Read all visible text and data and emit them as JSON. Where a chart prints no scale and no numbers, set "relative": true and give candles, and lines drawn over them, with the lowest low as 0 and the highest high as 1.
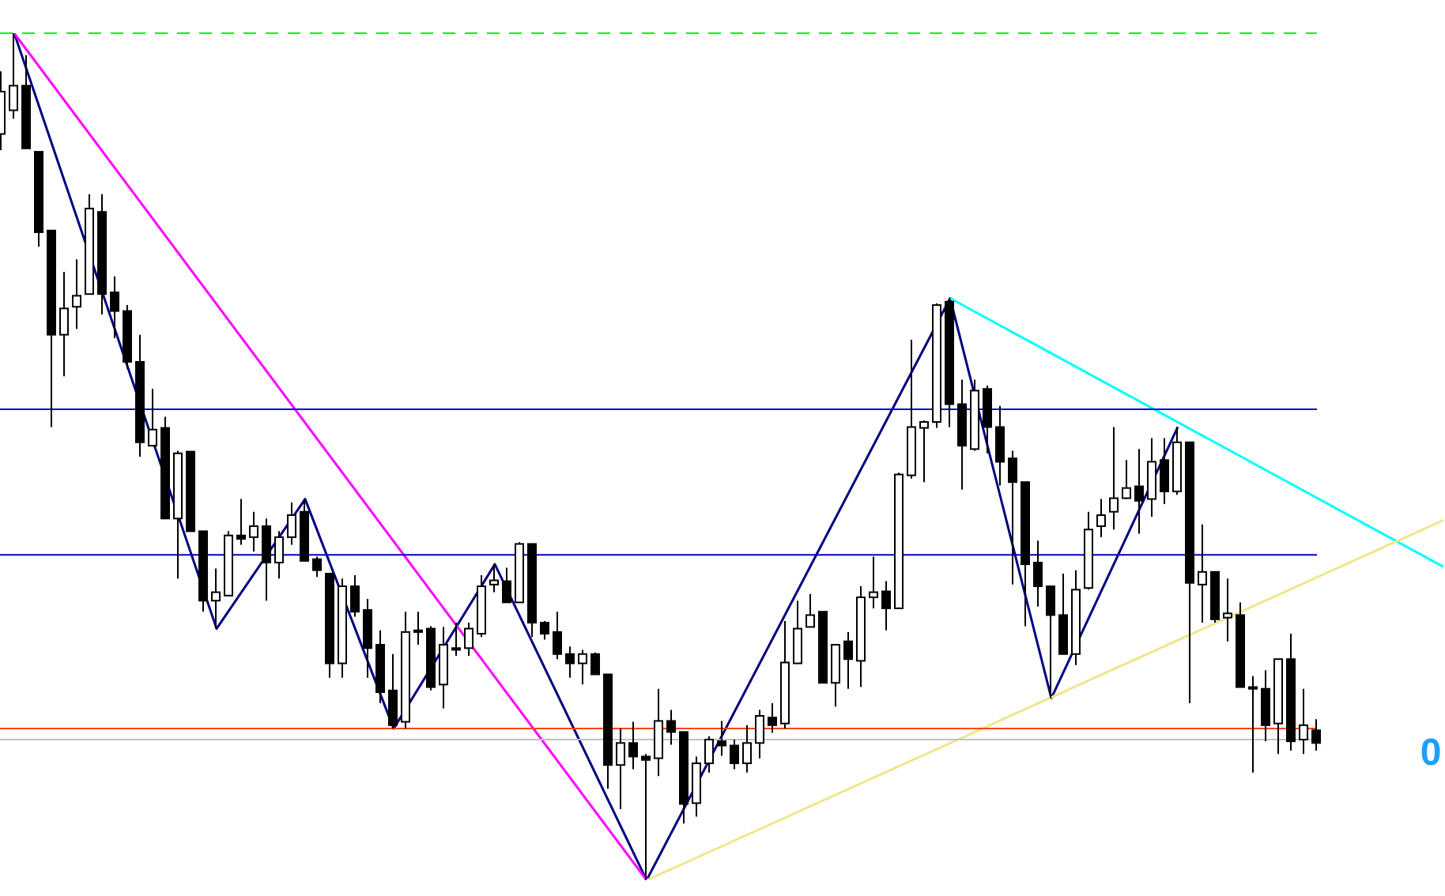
{
  "chart_data": {
    "type": "candlestick",
    "relative": true,
    "tick_labels": false,
    "categories": [
      null,
      null,
      null,
      null,
      null,
      null,
      null,
      null,
      null,
      null,
      null,
      null,
      null,
      null,
      null,
      null,
      null,
      null,
      null,
      null,
      null,
      null,
      null,
      null,
      null,
      null,
      null,
      null,
      null,
      null,
      null,
      null,
      null,
      null,
      null,
      null,
      null,
      null,
      null,
      null,
      null,
      null,
      null,
      null,
      null,
      null,
      null,
      null,
      null,
      null,
      null,
      null,
      null,
      null,
      null,
      null,
      null,
      null,
      null,
      null,
      null,
      null,
      null,
      null,
      null,
      null,
      null,
      null,
      null,
      null,
      null,
      null,
      null,
      null,
      null,
      null,
      null,
      null,
      null,
      null,
      null,
      null,
      null,
      null,
      null,
      null,
      null,
      null,
      null,
      null,
      null,
      null,
      null,
      null,
      null,
      null,
      null,
      null,
      null,
      null,
      null,
      null,
      null,
      null,
      null,
      null,
      null,
      null,
      null,
      null,
      null,
      null,
      null,
      null,
      null
    ],
    "ohlc": [
      [
        0.881,
        0.955,
        0.862,
        0.931
      ],
      [
        0.909,
        1,
        0.899,
        0.938
      ],
      [
        0.938,
        0.974,
        0.864,
        0.864
      ],
      [
        0.86,
        0.86,
        0.748,
        0.765
      ],
      [
        0.767,
        0.767,
        0.535,
        0.644
      ],
      [
        0.644,
        0.718,
        0.595,
        0.675
      ],
      [
        0.677,
        0.733,
        0.651,
        0.69
      ],
      [
        0.692,
        0.81,
        0.692,
        0.793
      ],
      [
        0.789,
        0.81,
        0.668,
        0.692
      ],
      [
        0.694,
        0.713,
        0.64,
        0.672
      ],
      [
        0.672,
        0.679,
        0.604,
        0.612
      ],
      [
        0.612,
        0.644,
        0.5,
        0.517
      ],
      [
        0.513,
        0.58,
        0.513,
        0.532
      ],
      [
        0.534,
        0.547,
        0.427,
        0.427
      ],
      [
        0.427,
        0.507,
        0.356,
        0.504
      ],
      [
        0.506,
        0.506,
        0.412,
        0.412
      ],
      [
        0.412,
        0.412,
        0.317,
        0.33
      ],
      [
        0.33,
        0.368,
        0.297,
        0.34
      ],
      [
        0.336,
        0.412,
        0.336,
        0.407
      ],
      [
        0.407,
        0.45,
        0.396,
        0.403
      ],
      [
        0.405,
        0.435,
        0.388,
        0.418
      ],
      [
        0.418,
        0.427,
        0.33,
        0.375
      ],
      [
        0.375,
        0.412,
        0.356,
        0.405
      ],
      [
        0.405,
        0.446,
        0.396,
        0.431
      ],
      [
        0.435,
        0.45,
        0.377,
        0.377
      ],
      [
        0.379,
        0.382,
        0.358,
        0.366
      ],
      [
        0.362,
        0.362,
        0.239,
        0.256
      ],
      [
        0.256,
        0.356,
        0.239,
        0.347
      ],
      [
        0.347,
        0.36,
        0.311,
        0.317
      ],
      [
        0.319,
        0.332,
        0.239,
        0.274
      ],
      [
        0.278,
        0.295,
        0.209,
        0.222
      ],
      [
        0.224,
        0.267,
        0.179,
        0.183
      ],
      [
        0.187,
        0.317,
        0.179,
        0.293
      ],
      [
        0.295,
        0.317,
        0.278,
        0.293
      ],
      [
        0.297,
        0.3,
        0.224,
        0.228
      ],
      [
        0.231,
        0.299,
        0.203,
        0.278
      ],
      [
        0.274,
        0.304,
        0.265,
        0.272
      ],
      [
        0.274,
        0.304,
        0.265,
        0.297
      ],
      [
        0.291,
        0.36,
        0.287,
        0.347
      ],
      [
        0.349,
        0.373,
        0.34,
        0.354
      ],
      [
        0.353,
        0.369,
        0.328,
        0.328
      ],
      [
        0.328,
        0.399,
        0.328,
        0.397
      ],
      [
        0.397,
        0.397,
        0.287,
        0.304
      ],
      [
        0.304,
        0.306,
        0.284,
        0.291
      ],
      [
        0.293,
        0.317,
        0.261,
        0.267
      ],
      [
        0.267,
        0.276,
        0.239,
        0.256
      ],
      [
        0.256,
        0.272,
        0.231,
        0.267
      ],
      [
        0.267,
        0.269,
        0.243,
        0.243
      ],
      [
        0.243,
        0.243,
        0.108,
        0.136
      ],
      [
        0.136,
        0.179,
        0.084,
        0.162
      ],
      [
        0.162,
        0.187,
        0.131,
        0.146
      ],
      [
        0.146,
        0.149,
        0,
        0.142
      ],
      [
        0.144,
        0.226,
        0.123,
        0.188
      ],
      [
        0.188,
        0.201,
        0.16,
        0.175
      ],
      [
        0.175,
        0.175,
        0.067,
        0.09
      ],
      [
        0.091,
        0.146,
        0.075,
        0.138
      ],
      [
        0.138,
        0.17,
        0.127,
        0.166
      ],
      [
        0.164,
        0.188,
        0.147,
        0.159
      ],
      [
        0.159,
        0.166,
        0.131,
        0.138
      ],
      [
        0.138,
        0.183,
        0.127,
        0.162
      ],
      [
        0.162,
        0.201,
        0.144,
        0.194
      ],
      [
        0.192,
        0.209,
        0.174,
        0.183
      ],
      [
        0.185,
        0.306,
        0.179,
        0.257
      ],
      [
        0.256,
        0.33,
        0.256,
        0.297
      ],
      [
        0.299,
        0.338,
        0.299,
        0.313
      ],
      [
        0.317,
        0.317,
        0.233,
        0.233
      ],
      [
        0.233,
        0.278,
        0.205,
        0.278
      ],
      [
        0.282,
        0.293,
        0.226,
        0.261
      ],
      [
        0.259,
        0.347,
        0.228,
        0.334
      ],
      [
        0.334,
        0.382,
        0.321,
        0.34
      ],
      [
        0.341,
        0.353,
        0.295,
        0.321
      ],
      [
        0.321,
        0.481,
        0.321,
        0.479
      ],
      [
        0.478,
        0.638,
        0.474,
        0.535
      ],
      [
        0.534,
        0.543,
        0.47,
        0.541
      ],
      [
        0.541,
        0.681,
        0.534,
        0.679
      ],
      [
        0.683,
        0.687,
        0.535,
        0.562
      ],
      [
        0.562,
        0.591,
        0.461,
        0.513
      ],
      [
        0.509,
        0.591,
        0.507,
        0.578
      ],
      [
        0.58,
        0.584,
        0.504,
        0.535
      ],
      [
        0.535,
        0.56,
        0.466,
        0.494
      ],
      [
        0.498,
        0.507,
        0.349,
        0.47
      ],
      [
        0.47,
        0.47,
        0.3,
        0.373
      ],
      [
        0.375,
        0.401,
        0.323,
        0.347
      ],
      [
        0.347,
        0.347,
        0.215,
        0.313
      ],
      [
        0.313,
        0.362,
        0.267,
        0.267
      ],
      [
        0.267,
        0.366,
        0.254,
        0.343
      ],
      [
        0.345,
        0.435,
        0.343,
        0.414
      ],
      [
        0.418,
        0.45,
        0.405,
        0.431
      ],
      [
        0.435,
        0.535,
        0.414,
        0.451
      ],
      [
        0.451,
        0.496,
        0.45,
        0.463
      ],
      [
        0.465,
        0.509,
        0.409,
        0.448
      ],
      [
        0.45,
        0.522,
        0.429,
        0.494
      ],
      [
        0.496,
        0.522,
        0.444,
        0.459
      ],
      [
        0.459,
        0.535,
        0.455,
        0.517
      ],
      [
        0.517,
        0.517,
        0.209,
        0.351
      ],
      [
        0.349,
        0.42,
        0.304,
        0.364
      ],
      [
        0.364,
        0.364,
        0.304,
        0.308
      ],
      [
        0.31,
        0.356,
        0.282,
        0.315
      ],
      [
        0.313,
        0.328,
        0.228,
        0.228
      ],
      [
        0.228,
        0.241,
        0.127,
        0.226
      ],
      [
        0.226,
        0.248,
        0.164,
        0.183
      ],
      [
        0.185,
        0.261,
        0.149,
        0.261
      ],
      [
        0.261,
        0.291,
        0.153,
        0.164
      ],
      [
        0.166,
        0.226,
        0.149,
        0.183
      ],
      [
        0.177,
        0.19,
        0.153,
        0.162
      ],
      null,
      null,
      null,
      null,
      null,
      null,
      null,
      null,
      null,
      null
    ],
    "series": [
      {
        "type": "line",
        "color": "#000080",
        "values": [
          null,
          1,
          null,
          null,
          null,
          null,
          null,
          null,
          null,
          null,
          null,
          null,
          null,
          null,
          null,
          null,
          null,
          0.297,
          null,
          null,
          null,
          null,
          null,
          null,
          0.45,
          null,
          null,
          null,
          null,
          null,
          null,
          0.179,
          null,
          null,
          null,
          null,
          null,
          null,
          null,
          0.373,
          null,
          null,
          null,
          null,
          null,
          null,
          null,
          null,
          null,
          null,
          null,
          0,
          null,
          null,
          null,
          null,
          null,
          null,
          null,
          null,
          null,
          null,
          null,
          null,
          null,
          null,
          null,
          null,
          null,
          null,
          null,
          null,
          null,
          null,
          null,
          0.687,
          null,
          null,
          null,
          null,
          null,
          null,
          null,
          0.215,
          null,
          null,
          null,
          null,
          null,
          null,
          null,
          null,
          null,
          0.535,
          null,
          null,
          null,
          null,
          null,
          null,
          null,
          null,
          null,
          null,
          null,
          null,
          null,
          null,
          null,
          null,
          null,
          null,
          null,
          null,
          null
        ]
      },
      {
        "type": "line",
        "color": "#ff00ff",
        "values": [
          null,
          1,
          null,
          null,
          null,
          null,
          null,
          null,
          null,
          null,
          null,
          null,
          null,
          null,
          null,
          null,
          null,
          null,
          null,
          null,
          null,
          null,
          null,
          null,
          null,
          null,
          null,
          null,
          null,
          null,
          null,
          null,
          null,
          null,
          null,
          null,
          null,
          null,
          null,
          null,
          null,
          null,
          null,
          null,
          null,
          null,
          null,
          null,
          null,
          null,
          null,
          0,
          null,
          null,
          null,
          null,
          null,
          null,
          null,
          null,
          null,
          null,
          null,
          null,
          null,
          null,
          null,
          null,
          null,
          null,
          null,
          null,
          null,
          null,
          null,
          null,
          null,
          null,
          null,
          null,
          null,
          null,
          null,
          null,
          null,
          null,
          null,
          null,
          null,
          null,
          null,
          null,
          null,
          null,
          null,
          null,
          null,
          null,
          null,
          null,
          null,
          null,
          null,
          null,
          null,
          null,
          null,
          null,
          null,
          null,
          null,
          null,
          null,
          null,
          null
        ]
      },
      {
        "type": "line",
        "color": "#00ffff",
        "values": [
          null,
          null,
          null,
          null,
          null,
          null,
          null,
          null,
          null,
          null,
          null,
          null,
          null,
          null,
          null,
          null,
          null,
          null,
          null,
          null,
          null,
          null,
          null,
          null,
          null,
          null,
          null,
          null,
          null,
          null,
          null,
          null,
          null,
          null,
          null,
          null,
          null,
          null,
          null,
          null,
          null,
          null,
          null,
          null,
          null,
          null,
          null,
          null,
          null,
          null,
          null,
          null,
          null,
          null,
          null,
          null,
          null,
          null,
          null,
          null,
          null,
          null,
          null,
          null,
          null,
          null,
          null,
          null,
          null,
          null,
          null,
          null,
          null,
          null,
          null,
          0.687,
          null,
          null,
          null,
          null,
          null,
          null,
          null,
          null,
          null,
          null,
          null,
          null,
          null,
          null,
          null,
          null,
          null,
          null,
          null,
          null,
          null,
          null,
          null,
          null,
          null,
          null,
          null,
          null,
          null,
          null,
          null,
          null,
          null,
          null,
          null,
          null,
          null,
          null,
          0.37
        ]
      },
      {
        "type": "line",
        "color": "#f0e68c",
        "values": [
          null,
          null,
          null,
          null,
          null,
          null,
          null,
          null,
          null,
          null,
          null,
          null,
          null,
          null,
          null,
          null,
          null,
          null,
          null,
          null,
          null,
          null,
          null,
          null,
          null,
          null,
          null,
          null,
          null,
          null,
          null,
          null,
          null,
          null,
          null,
          null,
          null,
          null,
          null,
          null,
          null,
          null,
          null,
          null,
          null,
          null,
          null,
          null,
          null,
          null,
          null,
          0,
          null,
          null,
          null,
          null,
          null,
          null,
          null,
          null,
          null,
          null,
          null,
          null,
          null,
          null,
          null,
          null,
          null,
          null,
          null,
          null,
          null,
          null,
          null,
          null,
          null,
          null,
          null,
          null,
          null,
          null,
          null,
          null,
          null,
          null,
          null,
          null,
          null,
          null,
          null,
          null,
          null,
          null,
          null,
          null,
          null,
          null,
          null,
          null,
          null,
          null,
          null,
          null,
          null,
          null,
          null,
          null,
          null,
          null,
          null,
          null,
          null,
          null,
          0.425
        ]
      }
    ],
    "ref_lines": [
      {
        "axis": "y",
        "value": 1,
        "color": "#00ff00",
        "line_style": "dashed"
      },
      {
        "axis": "y",
        "value": 0.556,
        "color": "#0000cd"
      },
      {
        "axis": "y",
        "value": 0.384,
        "color": "#0000cd"
      },
      {
        "axis": "y",
        "value": 0.179,
        "color": "#ff4500"
      },
      {
        "axis": "y",
        "value": 0.166,
        "color": "#c0c0c0",
        "label": "0"
      }
    ]
  }
}
